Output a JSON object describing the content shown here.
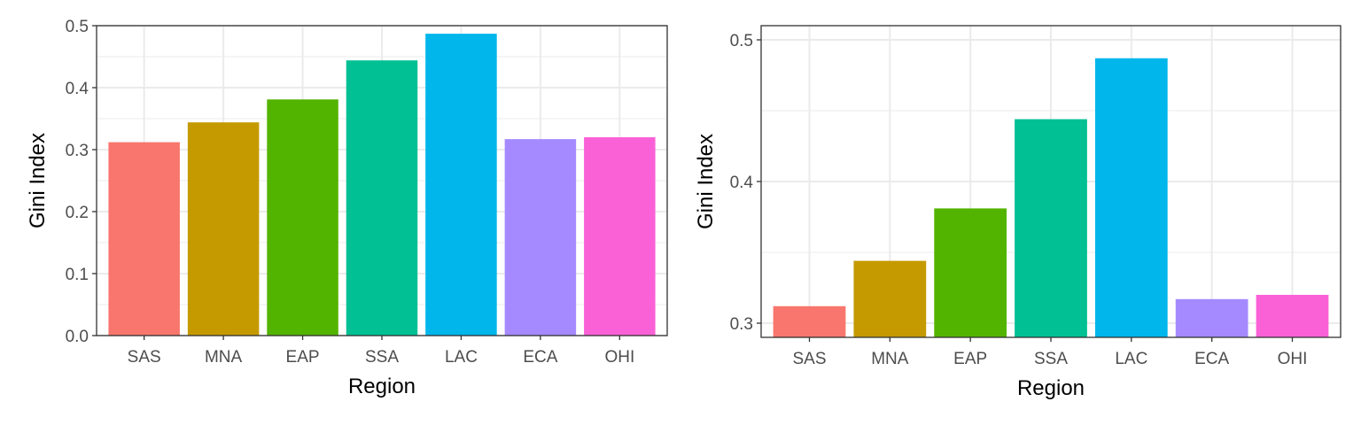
{
  "chart_data": [
    {
      "type": "bar",
      "categories": [
        "SAS",
        "MNA",
        "EAP",
        "SSA",
        "LAC",
        "ECA",
        "OHI"
      ],
      "values": [
        0.312,
        0.344,
        0.381,
        0.444,
        0.487,
        0.317,
        0.32
      ],
      "colors": [
        "#F8766D",
        "#C49A00",
        "#53B400",
        "#00C094",
        "#00B6EB",
        "#A58AFF",
        "#FB61D7"
      ],
      "xlabel": "Region",
      "ylabel": "Gini Index",
      "ylim": [
        0,
        0.5
      ],
      "yticks": [
        0.0,
        0.1,
        0.2,
        0.3,
        0.4,
        0.5
      ],
      "ytick_labels": [
        "0.0",
        "0.1",
        "0.2",
        "0.3",
        "0.4",
        "0.5"
      ],
      "grid": true,
      "legend": "none"
    },
    {
      "type": "bar",
      "categories": [
        "SAS",
        "MNA",
        "EAP",
        "SSA",
        "LAC",
        "ECA",
        "OHI"
      ],
      "values": [
        0.312,
        0.344,
        0.381,
        0.444,
        0.487,
        0.317,
        0.32
      ],
      "colors": [
        "#F8766D",
        "#C49A00",
        "#53B400",
        "#00C094",
        "#00B6EB",
        "#A58AFF",
        "#FB61D7"
      ],
      "xlabel": "Region",
      "ylabel": "Gini Index",
      "ylim": [
        0.29,
        0.51
      ],
      "yticks": [
        0.3,
        0.4,
        0.5
      ],
      "ytick_labels": [
        "0.3",
        "0.4",
        "0.5"
      ],
      "grid": true,
      "legend": "none"
    }
  ]
}
